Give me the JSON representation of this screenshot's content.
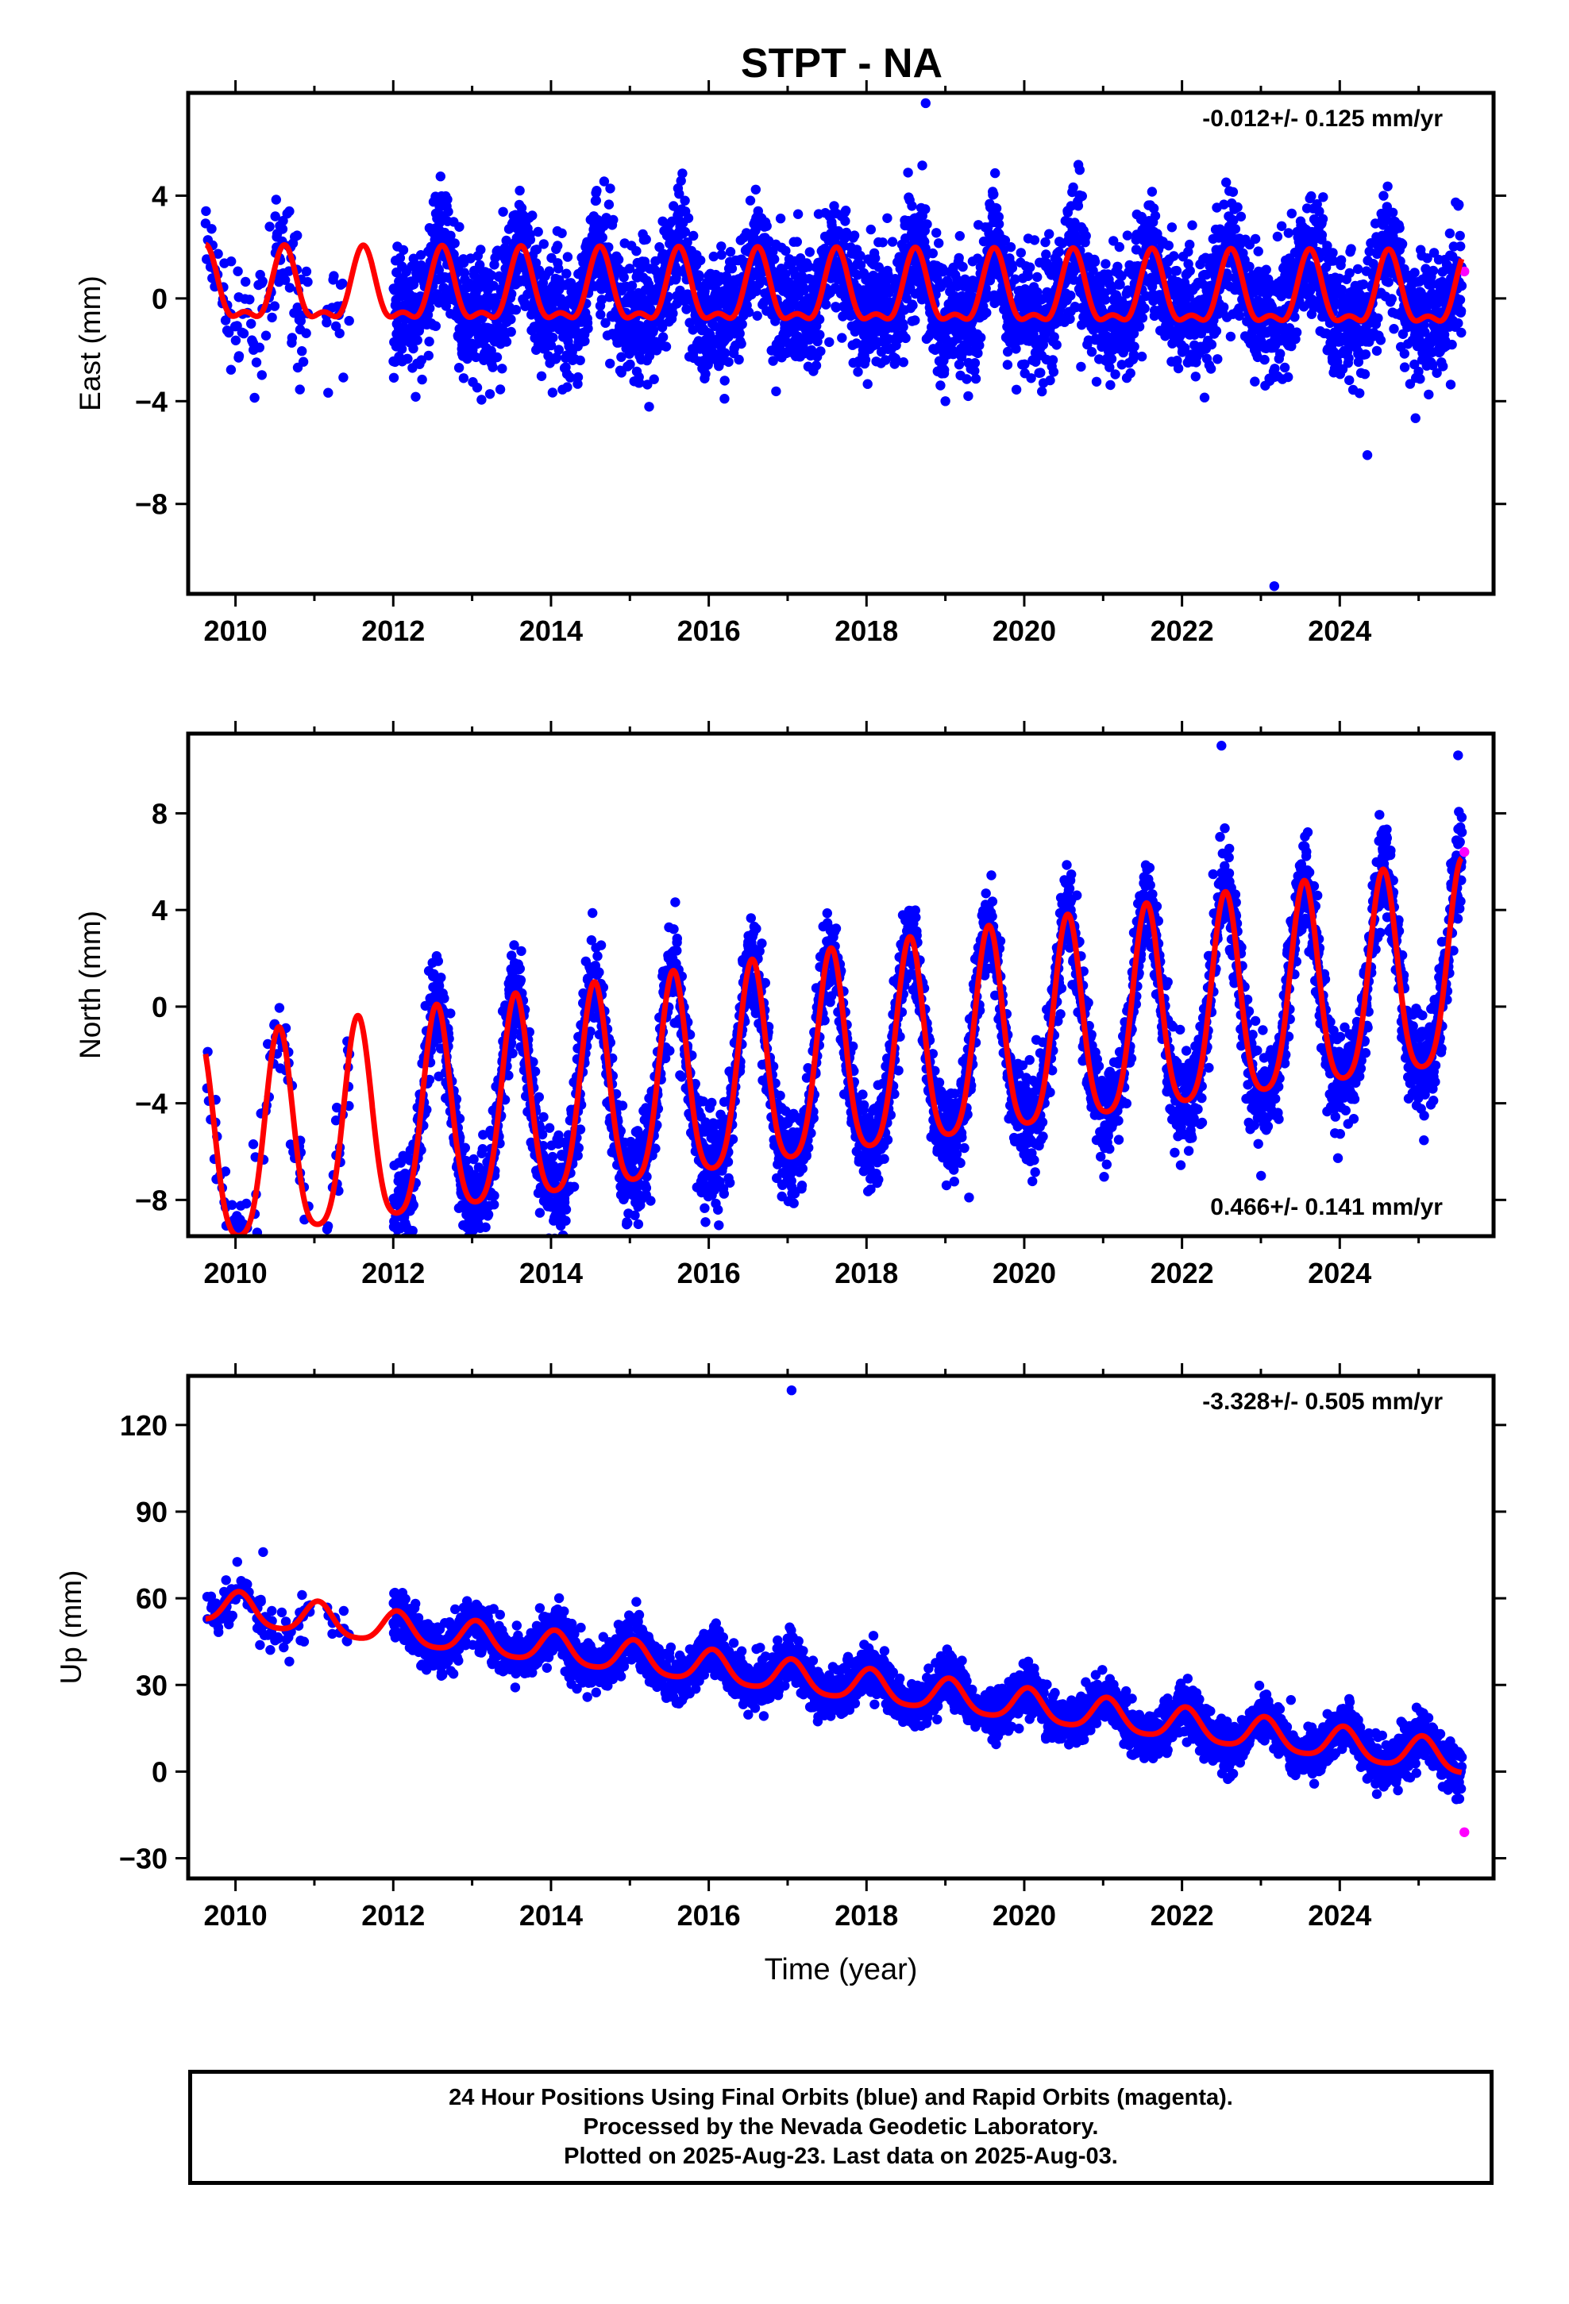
{
  "title": "STPT - NA",
  "xlabel": "Time (year)",
  "caption": [
    "24 Hour Positions Using Final Orbits (blue) and Rapid Orbits (magenta).",
    "Processed by the Nevada Geodetic Laboratory.",
    "Plotted on 2025-Aug-23. Last data on 2025-Aug-03."
  ],
  "colors": {
    "final": "#0000ff",
    "rapid": "#ff00ff",
    "model": "#ff0000",
    "frame": "#000000"
  },
  "chart_data": [
    {
      "type": "scatter",
      "component": "east",
      "ylabel": "East (mm)",
      "rate": "-0.012+/- 0.125 mm/yr",
      "rate_position": "top-right",
      "xlim": [
        2009.4,
        2025.95
      ],
      "ylim": [
        -11.5,
        8.0
      ],
      "xticks": [
        2010,
        2012,
        2014,
        2016,
        2018,
        2020,
        2022,
        2024
      ],
      "yticks": [
        4,
        0,
        -4,
        -8
      ],
      "ytick_labels": [
        "4",
        "0",
        "−4",
        "−8"
      ],
      "model": {
        "annual_amplitude": 1.3,
        "semiannual_amplitude": 0.55,
        "annual_phase_peak": 0.62,
        "offset": 0.15,
        "trend": -0.012,
        "noise_sd": 1.2,
        "start": 2009.62,
        "end": 2025.55
      },
      "outliers": [
        [
          2018.75,
          7.6
        ],
        [
          2023.17,
          -11.2
        ],
        [
          2024.35,
          -6.1
        ],
        [
          2019.0,
          -4.0
        ]
      ],
      "rapid_points": [
        [
          2025.58,
          1.05
        ]
      ]
    },
    {
      "type": "scatter",
      "component": "north",
      "ylabel": "North (mm)",
      "rate": "0.466+/- 0.141 mm/yr",
      "rate_position": "bottom-right",
      "xlim": [
        2009.4,
        2025.95
      ],
      "ylim": [
        -9.5,
        11.3
      ],
      "xticks": [
        2010,
        2012,
        2014,
        2016,
        2018,
        2020,
        2022,
        2024
      ],
      "yticks": [
        8,
        4,
        0,
        -4,
        -8
      ],
      "ytick_labels": [
        "8",
        "4",
        "0",
        "−4",
        "−8"
      ],
      "model": {
        "annual_amplitude": 4.2,
        "semiannual_amplitude": 0.8,
        "annual_phase_peak": 0.55,
        "offset": -2.6,
        "trend": 0.466,
        "noise_sd": 1.0,
        "start": 2009.62,
        "end": 2025.55
      },
      "outliers": [
        [
          2022.5,
          10.8
        ],
        [
          2025.5,
          10.4
        ],
        [
          2019.3,
          -7.9
        ],
        [
          2010.1,
          -9.0
        ]
      ],
      "rapid_points": [
        [
          2025.58,
          6.4
        ]
      ]
    },
    {
      "type": "scatter",
      "component": "up",
      "ylabel": "Up (mm)",
      "rate": "-3.328+/- 0.505 mm/yr",
      "rate_position": "top-right",
      "xlim": [
        2009.4,
        2025.95
      ],
      "ylim": [
        -37,
        137
      ],
      "xticks": [
        2010,
        2012,
        2014,
        2016,
        2018,
        2020,
        2022,
        2024
      ],
      "yticks": [
        120,
        90,
        60,
        30,
        0,
        -30
      ],
      "ytick_labels": [
        "120",
        "90",
        "60",
        "30",
        "0",
        "−30"
      ],
      "model": {
        "annual_amplitude": 5.5,
        "semiannual_amplitude": 1.0,
        "annual_phase_peak": 0.05,
        "offset": 31.0,
        "trend": -3.328,
        "noise_sd": 4.0,
        "start": 2009.62,
        "end": 2025.55
      },
      "outliers": [
        [
          2017.05,
          132
        ],
        [
          2010.35,
          76
        ],
        [
          2015.9,
          42
        ],
        [
          2017.0,
          40
        ],
        [
          2020.85,
          21
        ]
      ],
      "rapid_points": [
        [
          2025.58,
          -21
        ]
      ]
    }
  ]
}
